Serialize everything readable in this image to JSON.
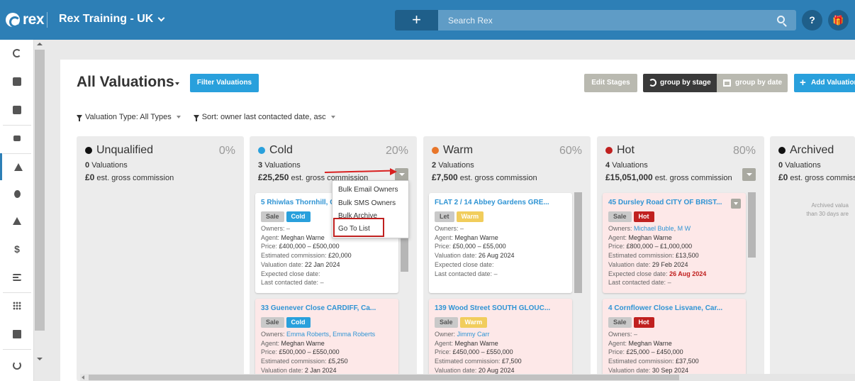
{
  "topbar": {
    "logo_text": "rex",
    "account_name": "Rex Training - UK",
    "add_label": "+",
    "search_placeholder": "Search Rex",
    "help_label": "?",
    "gift_label": "🎁"
  },
  "nav_icons": [
    "refresh-icon",
    "calendar-icon",
    "reports-icon",
    "paint-icon",
    "home-icon",
    "person-icon",
    "map-pin-icon",
    "dollar-icon",
    "list-icon",
    "apps-icon",
    "search-doc-icon",
    "sync-icon"
  ],
  "page": {
    "title": "All Valuations",
    "filter_button": "Filter Valuations",
    "edit_stages": "Edit Stages",
    "group_by_stage": "group by stage",
    "group_by_date": "group by date",
    "add_valuation": "Add Valuation",
    "filter_type": "Valuation Type: All Types",
    "filter_sort": "Sort: owner last contacted date, asc"
  },
  "columns": [
    {
      "name": "Unqualified",
      "color": "#111111",
      "pct": "0%",
      "count": "0",
      "count_label": "Valuations",
      "commission": "£0",
      "commission_label": "est. gross commission"
    },
    {
      "name": "Cold",
      "color": "#29a0dc",
      "pct": "20%",
      "count": "3",
      "count_label": "Valuations",
      "commission": "£25,250",
      "commission_label": "est. gross commission"
    },
    {
      "name": "Warm",
      "color": "#e8762a",
      "pct": "60%",
      "count": "2",
      "count_label": "Valuations",
      "commission": "£7,500",
      "commission_label": "est. gross commission"
    },
    {
      "name": "Hot",
      "color": "#c0201f",
      "pct": "80%",
      "count": "4",
      "count_label": "Valuations",
      "commission": "£15,051,000",
      "commission_label": "est. gross commission"
    },
    {
      "name": "Archived",
      "color": "#111111",
      "pct": "",
      "count": "0",
      "count_label": "Valuations",
      "commission": "£0",
      "commission_label": "est. gross commiss",
      "note_line1": "Archived valua",
      "note_line2": "than 30 days are"
    }
  ],
  "cards": {
    "cold1": {
      "title": "5 Rhiwlas Thornhill, CARDIFF",
      "type": "Sale",
      "stage": "Cold",
      "owners_label": "Owners:",
      "owners": "–",
      "agent_label": "Agent:",
      "agent": "Meghan Warne",
      "price_label": "Price:",
      "price": "£400,000 – £500,000",
      "comm_label": "Estimated commission:",
      "comm": "£20,000",
      "val_label": "Valuation date:",
      "val": "22 Jan 2024",
      "close_label": "Expected close date:",
      "close": "",
      "contact_label": "Last contacted date:",
      "contact": "–"
    },
    "cold2": {
      "title": "33 Guenever Close CARDIFF, Ca...",
      "type": "Sale",
      "stage": "Cold",
      "owners_label": "Owners:",
      "owner_a": "Emma Roberts",
      "owner_b": "Emma Roberts",
      "agent_label": "Agent:",
      "agent": "Meghan Warne",
      "price_label": "Price:",
      "price": "£500,000 – £550,000",
      "comm_label": "Estimated commission:",
      "comm": "£5,250",
      "val_label": "Valuation date:",
      "val": "2 Jan 2024"
    },
    "warm1": {
      "title": "FLAT 2 / 14 Abbey Gardens GRE...",
      "type": "Let",
      "stage": "Warm",
      "owners_label": "Owners:",
      "owners": "–",
      "agent_label": "Agent:",
      "agent": "Meghan Warne",
      "price_label": "Price:",
      "price": "£50,000 – £55,000",
      "val_label": "Valuation date:",
      "val": "26 Aug 2024",
      "close_label": "Expected close date:",
      "close": "",
      "contact_label": "Last contacted date:",
      "contact": "–"
    },
    "warm2": {
      "title": "139 Wood Street SOUTH GLOUC...",
      "type": "Sale",
      "stage": "Warm",
      "owners_label": "Owner:",
      "owner_a": "Jimmy Carr",
      "agent_label": "Agent:",
      "agent": "Meghan Warne",
      "price_label": "Price:",
      "price": "£450,000 – £550,000",
      "comm_label": "Estimated commission:",
      "comm": "£7,500",
      "val_label": "Valuation date:",
      "val": "20 Aug 2024"
    },
    "hot1": {
      "title": "45 Dursley Road CITY OF BRIST...",
      "type": "Sale",
      "stage": "Hot",
      "owners_label": "Owners:",
      "owner_a": "Michael Buble",
      "owner_b": "M W",
      "agent_label": "Agent:",
      "agent": "Meghan Warne",
      "price_label": "Price:",
      "price": "£800,000 – £1,000,000",
      "comm_label": "Estimated commission:",
      "comm": "£13,500",
      "val_label": "Valuation date:",
      "val": "29 Feb 2024",
      "close_label": "Expected close date:",
      "close": "26 Aug 2024",
      "contact_label": "Last contacted date:",
      "contact": "–"
    },
    "hot2": {
      "title": "4 Cornflower Close Lisvane, Car...",
      "type": "Sale",
      "stage": "Hot",
      "owners_label": "Owners:",
      "owners": "–",
      "agent_label": "Agent:",
      "agent": "Meghan Warne",
      "price_label": "Price:",
      "price": "£25,000 – £450,000",
      "comm_label": "Estimated commission:",
      "comm": "£37,500",
      "val_label": "Valuation date:",
      "val": "30 Sep 2024"
    }
  },
  "dropdown": {
    "items": [
      "Bulk Email Owners",
      "Bulk SMS Owners",
      "Bulk Archive",
      "Go To List"
    ]
  }
}
